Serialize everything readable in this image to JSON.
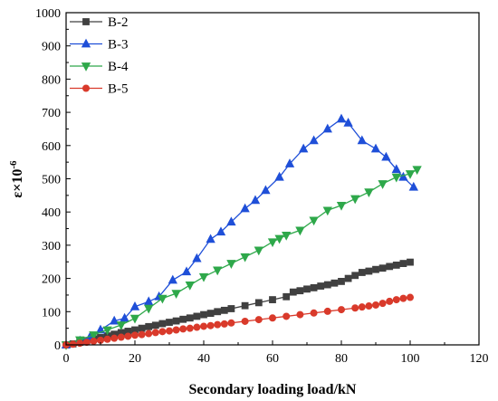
{
  "chart_data": {
    "type": "line",
    "xlabel": "Secondary loading load/kN",
    "ylabel_base": "ε×10",
    "ylabel_exp": "-6",
    "xlim": [
      0,
      120
    ],
    "ylim": [
      0,
      1000
    ],
    "xticks": [
      "0",
      "20",
      "40",
      "60",
      "80",
      "100",
      "120"
    ],
    "yticks": [
      "0",
      "100",
      "200",
      "300",
      "400",
      "500",
      "600",
      "700",
      "800",
      "900",
      "1000"
    ],
    "grid": false,
    "legend_position": "top-left",
    "series": [
      {
        "name": "B-2",
        "color": "#404040",
        "marker": "square",
        "x": [
          0,
          2,
          4,
          6,
          8,
          10,
          12,
          14,
          16,
          18,
          20,
          22,
          24,
          26,
          28,
          30,
          32,
          34,
          36,
          38,
          40,
          42,
          44,
          46,
          48,
          52,
          56,
          60,
          64,
          66,
          68,
          70,
          72,
          74,
          76,
          78,
          80,
          82,
          84,
          86,
          88,
          90,
          92,
          94,
          96,
          98,
          100
        ],
        "y": [
          0,
          3,
          8,
          13,
          18,
          22,
          27,
          32,
          37,
          41,
          45,
          50,
          55,
          59,
          64,
          68,
          72,
          77,
          81,
          86,
          91,
          95,
          100,
          104,
          109,
          118,
          127,
          136,
          145,
          159,
          163,
          168,
          172,
          177,
          181,
          186,
          191,
          200,
          209,
          218,
          222,
          227,
          231,
          236,
          240,
          245,
          249
        ]
      },
      {
        "name": "B-3",
        "color": "#1f4fd8",
        "marker": "triangle-up",
        "x": [
          0,
          4,
          7,
          10,
          14,
          17,
          20,
          24,
          27,
          31,
          35,
          38,
          42,
          45,
          48,
          52,
          55,
          58,
          62,
          65,
          69,
          72,
          76,
          80,
          82,
          86,
          90,
          93,
          96,
          98,
          101
        ],
        "y": [
          0,
          12,
          25,
          45,
          72,
          80,
          115,
          130,
          145,
          195,
          220,
          260,
          318,
          340,
          370,
          410,
          435,
          465,
          505,
          545,
          590,
          615,
          650,
          680,
          668,
          615,
          590,
          565,
          528,
          505,
          475
        ]
      },
      {
        "name": "B-4",
        "color": "#2ea84a",
        "marker": "triangle-down",
        "x": [
          0,
          4,
          8,
          12,
          16,
          20,
          24,
          28,
          32,
          36,
          40,
          44,
          48,
          52,
          56,
          60,
          62,
          64,
          68,
          72,
          76,
          80,
          84,
          88,
          92,
          96,
          100,
          102
        ],
        "y": [
          0,
          15,
          30,
          45,
          60,
          80,
          110,
          140,
          155,
          180,
          205,
          225,
          245,
          265,
          285,
          310,
          320,
          330,
          345,
          375,
          405,
          420,
          440,
          460,
          485,
          505,
          515,
          528
        ]
      },
      {
        "name": "B-5",
        "color": "#d93a2b",
        "marker": "circle",
        "x": [
          0,
          2,
          4,
          6,
          8,
          10,
          12,
          14,
          16,
          18,
          20,
          22,
          24,
          26,
          28,
          30,
          32,
          34,
          36,
          38,
          40,
          42,
          44,
          46,
          48,
          52,
          56,
          60,
          64,
          68,
          72,
          76,
          80,
          84,
          86,
          88,
          90,
          92,
          94,
          96,
          98,
          100
        ],
        "y": [
          0,
          2,
          5,
          8,
          11,
          14,
          17,
          20,
          23,
          26,
          29,
          31,
          34,
          37,
          40,
          42,
          45,
          48,
          50,
          53,
          56,
          58,
          61,
          63,
          66,
          71,
          76,
          81,
          86,
          91,
          96,
          101,
          106,
          111,
          114,
          117,
          120,
          125,
          131,
          136,
          140,
          143
        ]
      }
    ]
  }
}
